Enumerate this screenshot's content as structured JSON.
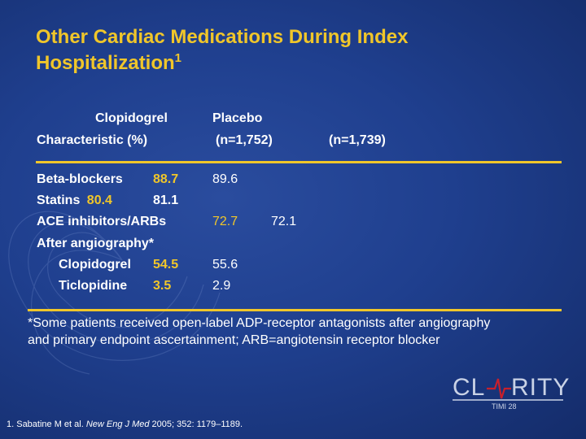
{
  "title": {
    "line1": "Other Cardiac Medications During Index",
    "line2": "Hospitalization",
    "superscript": "1"
  },
  "header": {
    "col_clopidogrel": "Clopidogrel",
    "col_characteristic": "Characteristic (%)",
    "col_placebo": "Placebo",
    "n_clopidogrel": "(n=1,752)",
    "n_placebo": "(n=1,739)"
  },
  "rows": [
    {
      "label": "Beta-blockers",
      "clopidogrel": "88.7",
      "placebo": "89.6"
    },
    {
      "label": "Statins",
      "clopidogrel": "80.4",
      "placebo": "81.1"
    },
    {
      "label": "ACE inhibitors/ARBs",
      "clopidogrel": "72.7",
      "placebo": "72.1"
    },
    {
      "label": "After angiography*"
    },
    {
      "label": "Clopidogrel",
      "clopidogrel": "54.5",
      "placebo": "55.6"
    },
    {
      "label": "Ticlopidine",
      "clopidogrel": "3.5",
      "placebo": "2.9"
    }
  ],
  "footnote": {
    "line1": "*Some patients received open-label ADP-receptor antagonists after angiography",
    "line2": "and primary endpoint ascertainment; ARB=angiotensin receptor blocker"
  },
  "reference": {
    "prefix": "1. Sabatine M et al. ",
    "journal": "New Eng J Med",
    "rest": " 2005; 352: 1179–1189."
  },
  "logo": {
    "text": "CL–RITY",
    "subtext": "TIMI 28"
  },
  "colors": {
    "background": "#1f3f8e",
    "accent": "#f0c62a",
    "text": "#ffffff",
    "logo": "#c9d2e6",
    "logo_accent": "#c8202c"
  }
}
